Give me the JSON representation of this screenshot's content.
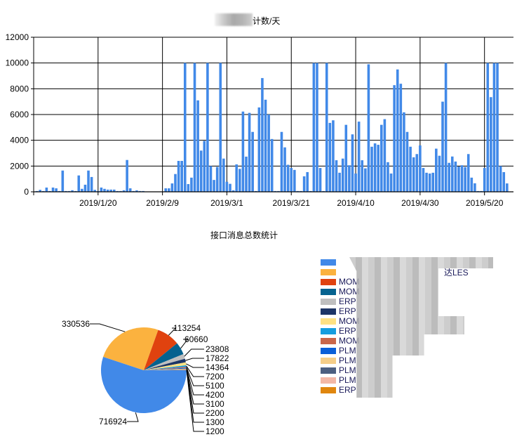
{
  "chart_data": [
    {
      "type": "bar",
      "title": "计数/天",
      "x_start_date": "2019-01-01",
      "x_tick_labels": [
        "2019/1/20",
        "2019/2/9",
        "2019/3/1",
        "2019/3/21",
        "2019/4/10",
        "2019/4/30",
        "2019/5/20"
      ],
      "y_tick_labels": [
        "0",
        "2000",
        "4000",
        "6000",
        "8000",
        "10000",
        "12000"
      ],
      "ylim": [
        0,
        12000
      ],
      "grid": true,
      "bar_color": "#4189e8",
      "values": [
        60,
        150,
        60,
        330,
        60,
        330,
        270,
        60,
        1650,
        60,
        60,
        120,
        60,
        1270,
        230,
        550,
        1650,
        1150,
        150,
        60,
        330,
        230,
        170,
        170,
        170,
        60,
        60,
        120,
        2470,
        270,
        60,
        110,
        60,
        60,
        0,
        0,
        0,
        0,
        0,
        0,
        270,
        270,
        650,
        1380,
        2400,
        2400,
        10000,
        600,
        1100,
        10000,
        7100,
        3200,
        3950,
        10000,
        2000,
        920,
        1930,
        10000,
        2580,
        780,
        620,
        120,
        2130,
        1780,
        6230,
        2730,
        6130,
        4650,
        60,
        6550,
        8830,
        7150,
        6000,
        4100,
        60,
        60,
        4650,
        3450,
        2100,
        1850,
        1700,
        60,
        60,
        1200,
        1530,
        60,
        10000,
        10000,
        1850,
        60,
        10000,
        5350,
        5550,
        2450,
        1480,
        2580,
        5200,
        2060,
        4460,
        1420,
        5450,
        2450,
        1820,
        9900,
        3500,
        3760,
        3650,
        5200,
        5640,
        2300,
        1420,
        8280,
        9500,
        8390,
        6170,
        4650,
        3500,
        2680,
        2930,
        3600,
        1850,
        1480,
        1420,
        1480,
        3350,
        2800,
        7000,
        10000,
        2250,
        2740,
        2350,
        1960,
        2060,
        1920,
        2930,
        1100,
        660,
        60,
        60,
        1850,
        10000,
        7350,
        10000,
        10000,
        2000,
        1530,
        650
      ]
    },
    {
      "type": "pie",
      "title": "接口消息总数统计",
      "legend_placement": "right",
      "slices": [
        {
          "label": "",
          "value": 716924,
          "color": "#4189e8"
        },
        {
          "label": "达LES",
          "value": 330536,
          "color": "#fbb23f"
        },
        {
          "label": "MOM",
          "value": 113254,
          "color": "#e0420f"
        },
        {
          "label": "MOM",
          "value": 60660,
          "color": "#05628f"
        },
        {
          "label": "ERP",
          "value": 23808,
          "color": "#bfbfbf"
        },
        {
          "label": "ERP",
          "value": 17822,
          "color": "#1d3566"
        },
        {
          "label": "MOM",
          "value": 14364,
          "color": "#fee183"
        },
        {
          "label": "ERP",
          "value": 7200,
          "color": "#159ddf"
        },
        {
          "label": "MOM",
          "value": 5100,
          "color": "#c9664a"
        },
        {
          "label": "PLM",
          "value": 4200,
          "color": "#0a5fd8"
        },
        {
          "label": "PLM",
          "value": 3100,
          "color": "#f5ce89"
        },
        {
          "label": "PLM",
          "value": 2200,
          "color": "#4c5f80"
        },
        {
          "label": "PLM",
          "value": 1300,
          "color": "#f3b8a6"
        },
        {
          "label": "ERP",
          "value": 1200,
          "color": "#e0860e"
        }
      ]
    }
  ]
}
